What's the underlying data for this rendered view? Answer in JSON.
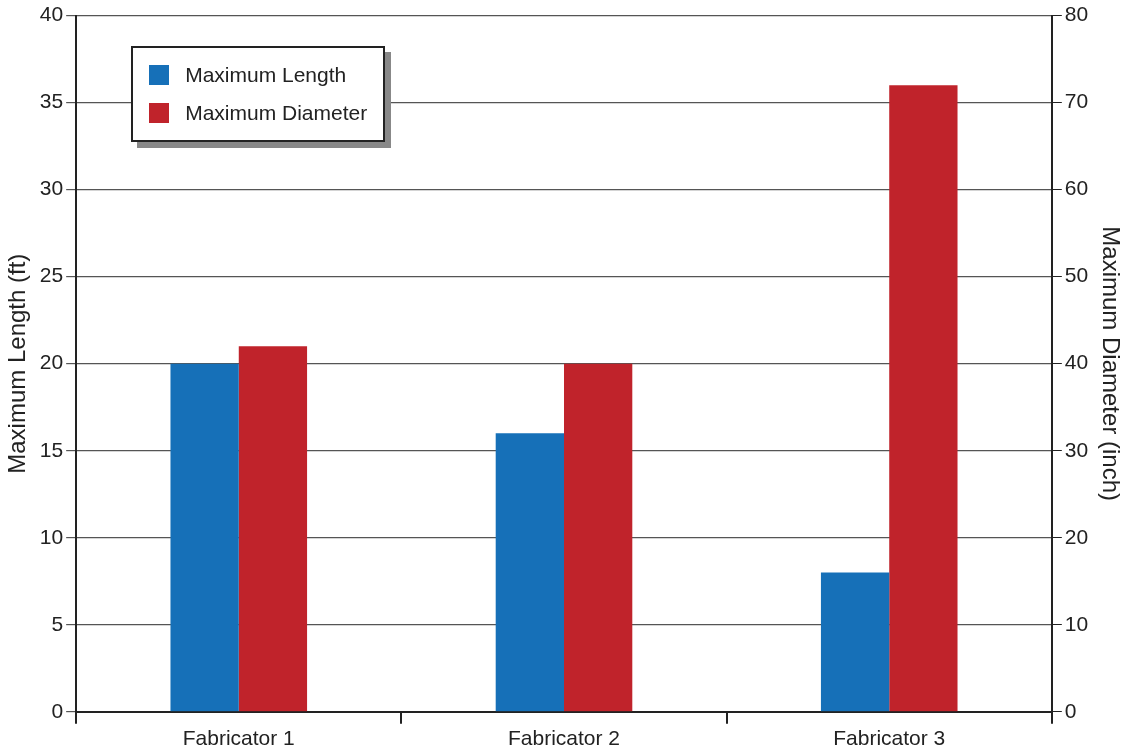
{
  "chart_data": {
    "type": "bar",
    "ylabel": "Maximum Length (ft)",
    "y2label": "Maximum Diameter (inch)",
    "categories": [
      "Fabricator 1",
      "Fabricator 2",
      "Fabricator 3"
    ],
    "series": [
      {
        "name": "Maximum Length",
        "color": "#1670b8",
        "values": [
          20,
          16,
          8
        ]
      },
      {
        "name": "Maximum Diameter",
        "color": "#c0232b",
        "values": [
          42,
          40,
          72
        ],
        "axis": "y2"
      }
    ],
    "ylim": [
      0,
      40
    ],
    "yticks": [
      0,
      5,
      10,
      15,
      20,
      25,
      30,
      35,
      40
    ],
    "y2lim": [
      0,
      80
    ],
    "y2ticks": [
      0,
      10,
      20,
      30,
      40,
      50,
      60,
      70,
      80
    ],
    "grid": "y",
    "legend": "top left"
  }
}
